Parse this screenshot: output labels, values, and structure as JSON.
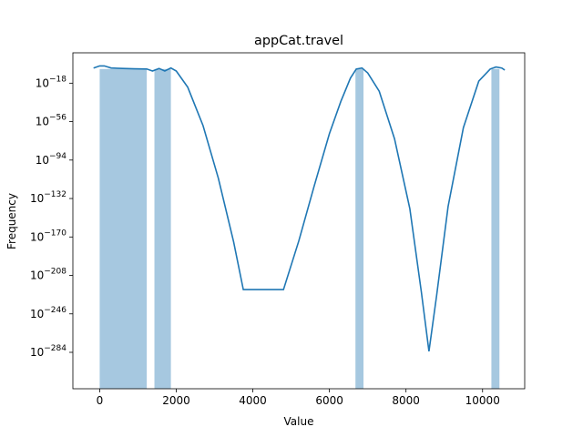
{
  "chart_data": {
    "type": "bar",
    "title": "appCat.travel",
    "xlabel": "Value",
    "ylabel": "Frequency",
    "xlim": [
      -700,
      11100
    ],
    "x_ticks": [
      "0",
      "2000",
      "4000",
      "6000",
      "8000",
      "10000"
    ],
    "x_tick_values": [
      0,
      2000,
      4000,
      6000,
      8000,
      10000
    ],
    "y_scale": "log",
    "ylim_exponent": [
      -320,
      12
    ],
    "y_ticks": [
      {
        "base": "10",
        "exp": "−18",
        "value": -18
      },
      {
        "base": "10",
        "exp": "−56",
        "value": -56
      },
      {
        "base": "10",
        "exp": "−94",
        "value": -94
      },
      {
        "base": "10",
        "exp": "−132",
        "value": -132
      },
      {
        "base": "10",
        "exp": "−170",
        "value": -170
      },
      {
        "base": "10",
        "exp": "−208",
        "value": -208
      },
      {
        "base": "10",
        "exp": "−246",
        "value": -246
      },
      {
        "base": "10",
        "exp": "−284",
        "value": -284
      }
    ],
    "histogram_bars": [
      {
        "x0": 0,
        "x1": 1230,
        "log10_value": -4
      },
      {
        "x0": 1430,
        "x1": 1860,
        "log10_value": -4
      },
      {
        "x0": 6680,
        "x1": 6890,
        "log10_value": -4
      },
      {
        "x0": 10230,
        "x1": 10440,
        "log10_value": -4
      }
    ],
    "kde_curve": {
      "x": [
        -160,
        0,
        120,
        300,
        600,
        900,
        1230,
        1380,
        1550,
        1700,
        1860,
        2000,
        2300,
        2700,
        3100,
        3500,
        3750,
        4800,
        5200,
        5600,
        6000,
        6300,
        6550,
        6700,
        6850,
        7000,
        7300,
        7700,
        8100,
        8400,
        8600,
        8800,
        9100,
        9500,
        9900,
        10200,
        10350,
        10500,
        10580
      ],
      "log10_y": [
        -3,
        -1,
        -1,
        -3,
        -3.5,
        -3.8,
        -4,
        -6,
        -3.5,
        -6,
        -3,
        -6,
        -22,
        -60,
        -112,
        -175,
        -222,
        -222,
        -174,
        -120,
        -68,
        -36,
        -13,
        -4,
        -3,
        -8,
        -26,
        -73,
        -142,
        -224,
        -283,
        -228,
        -140,
        -62,
        -16,
        -4,
        -2,
        -3,
        -5
      ]
    },
    "colors": {
      "bar": "#a6c8e0",
      "line": "#1f77b4"
    }
  }
}
